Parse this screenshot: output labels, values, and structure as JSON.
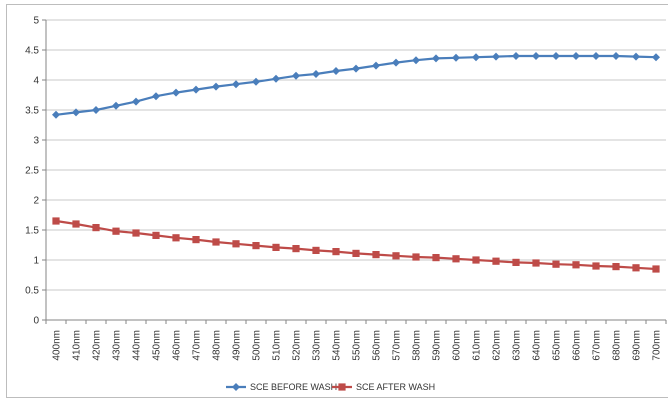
{
  "chart_data": {
    "type": "line",
    "categories": [
      "400nm",
      "410nm",
      "420nm",
      "430nm",
      "440nm",
      "450nm",
      "460nm",
      "470nm",
      "480nm",
      "490nm",
      "500nm",
      "510nm",
      "520nm",
      "530nm",
      "540nm",
      "550nm",
      "560nm",
      "570nm",
      "580nm",
      "590nm",
      "600nm",
      "610nm",
      "620nm",
      "630nm",
      "640nm",
      "650nm",
      "660nm",
      "670nm",
      "680nm",
      "690nm",
      "700nm"
    ],
    "series": [
      {
        "name": "SCE BEFORE WASH",
        "color": "#4a7ebb",
        "marker": "diamond",
        "values": [
          3.42,
          3.46,
          3.5,
          3.57,
          3.64,
          3.73,
          3.79,
          3.84,
          3.89,
          3.93,
          3.97,
          4.02,
          4.07,
          4.1,
          4.15,
          4.19,
          4.24,
          4.29,
          4.33,
          4.36,
          4.37,
          4.38,
          4.39,
          4.4,
          4.4,
          4.4,
          4.4,
          4.4,
          4.4,
          4.39,
          4.38
        ]
      },
      {
        "name": "SCE AFTER WASH",
        "color": "#be4b48",
        "marker": "square",
        "values": [
          1.65,
          1.6,
          1.54,
          1.48,
          1.45,
          1.41,
          1.37,
          1.34,
          1.3,
          1.27,
          1.24,
          1.21,
          1.19,
          1.16,
          1.14,
          1.11,
          1.09,
          1.07,
          1.05,
          1.04,
          1.02,
          1.0,
          0.98,
          0.96,
          0.95,
          0.93,
          0.92,
          0.9,
          0.89,
          0.87,
          0.85
        ]
      }
    ],
    "y_ticks": [
      "0",
      "0.5",
      "1",
      "1.5",
      "2",
      "2.5",
      "3",
      "3.5",
      "4",
      "4.5",
      "5"
    ],
    "ylim": [
      0,
      5
    ],
    "grid": true,
    "legend_position": "bottom"
  }
}
